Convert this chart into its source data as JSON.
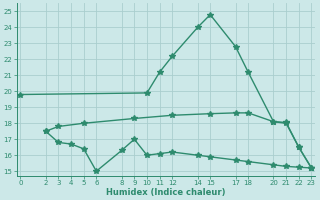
{
  "line1_x": [
    0,
    10,
    11,
    12,
    14,
    15,
    17,
    18,
    20,
    21,
    22,
    23
  ],
  "line1_y": [
    19.8,
    19.9,
    21.2,
    22.2,
    24.0,
    24.8,
    22.8,
    21.2,
    18.1,
    18.0,
    16.5,
    15.2
  ],
  "line2_x": [
    2,
    3,
    5,
    9,
    12,
    15,
    17,
    18,
    20,
    21,
    22,
    23
  ],
  "line2_y": [
    17.5,
    17.8,
    18.0,
    18.3,
    18.5,
    18.6,
    18.65,
    18.65,
    18.1,
    18.05,
    16.5,
    15.2
  ],
  "line3_x": [
    2,
    3,
    4,
    5,
    6,
    8,
    9,
    10,
    11,
    12,
    14,
    15,
    17,
    18,
    20,
    21,
    22,
    23
  ],
  "line3_y": [
    17.5,
    16.8,
    16.7,
    16.4,
    15.0,
    16.3,
    17.0,
    16.0,
    16.1,
    16.2,
    16.0,
    15.9,
    15.7,
    15.6,
    15.4,
    15.3,
    15.25,
    15.2
  ],
  "line_color": "#2e8b6e",
  "bg_color": "#cce8e8",
  "grid_color": "#aacece",
  "xlabel": "Humidex (Indice chaleur)",
  "xlim": [
    -0.3,
    23.3
  ],
  "ylim": [
    14.7,
    25.5
  ],
  "xticks": [
    0,
    2,
    3,
    4,
    5,
    6,
    8,
    9,
    10,
    11,
    12,
    14,
    15,
    17,
    18,
    20,
    21,
    22,
    23
  ],
  "yticks": [
    15,
    16,
    17,
    18,
    19,
    20,
    21,
    22,
    23,
    24,
    25
  ],
  "marker": "*",
  "markersize": 4,
  "linewidth": 1.0
}
